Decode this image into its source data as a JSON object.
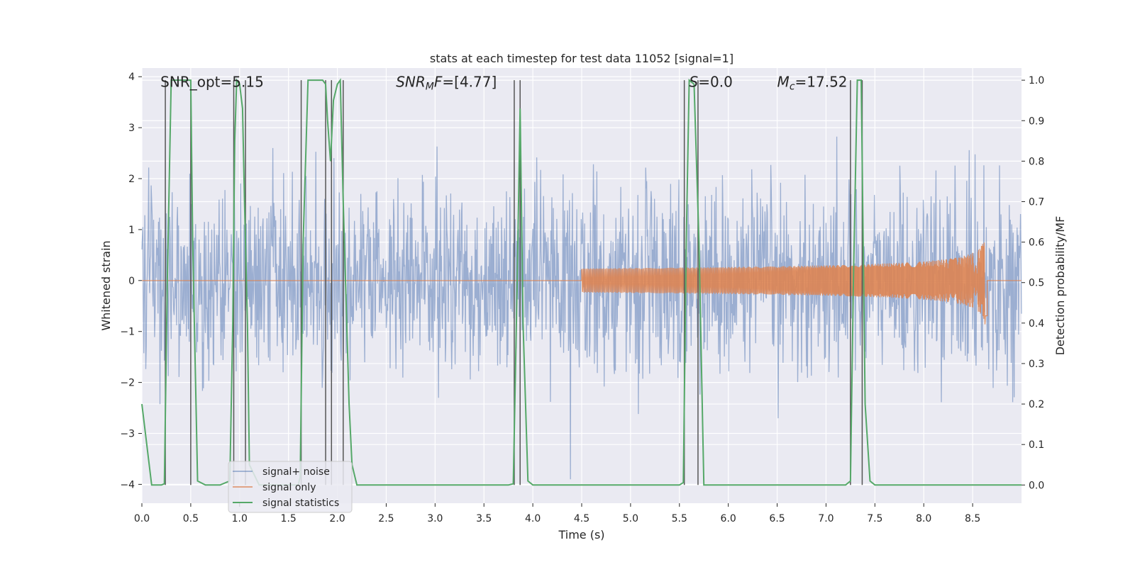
{
  "chart_data": {
    "type": "line",
    "title": "stats at each timestep for test data 11052 [signal=1]",
    "xlabel": "Time (s)",
    "ylabel_left": "Whitened strain",
    "ylabel_right": "Detection probability/MF",
    "xlim": [
      0.0,
      9.0
    ],
    "ylim_left": [
      -4.37,
      4.17
    ],
    "ylim_right": [
      -0.045,
      1.03
    ],
    "x_ticks": [
      0.0,
      0.5,
      1.0,
      1.5,
      2.0,
      2.5,
      3.0,
      3.5,
      4.0,
      4.5,
      5.0,
      5.5,
      6.0,
      6.5,
      7.0,
      7.5,
      8.0,
      8.5
    ],
    "x_tick_labels": [
      "0.0",
      "0.5",
      "1.0",
      "1.5",
      "2.0",
      "2.5",
      "3.0",
      "3.5",
      "4.0",
      "4.5",
      "5.0",
      "5.5",
      "6.0",
      "6.5",
      "7.0",
      "7.5",
      "8.0",
      "8.5"
    ],
    "y_left_ticks": [
      -4,
      -3,
      -2,
      -1,
      0,
      1,
      2,
      3,
      4
    ],
    "y_left_tick_labels": [
      "−4",
      "−3",
      "−2",
      "−1",
      "0",
      "1",
      "2",
      "3",
      "4"
    ],
    "y_right_ticks": [
      0.0,
      0.1,
      0.2,
      0.3,
      0.4,
      0.5,
      0.6,
      0.7,
      0.8,
      0.9,
      1.0
    ],
    "y_right_tick_labels": [
      "0.0",
      "0.1",
      "0.2",
      "0.3",
      "0.4",
      "0.5",
      "0.6",
      "0.7",
      "0.8",
      "0.9",
      "1.0"
    ],
    "grid": true,
    "legend_position": "lower-left",
    "annotations": [
      {
        "text": "SNR_opt=5.15",
        "x": 0.19,
        "y": 3.8
      },
      {
        "text": "SNR_MF=[4.77]",
        "x": 2.6,
        "y": 3.8
      },
      {
        "text": "S=0.0",
        "x": 5.6,
        "y": 3.8
      },
      {
        "text": "M_c=17.52",
        "x": 6.5,
        "y": 3.8
      }
    ],
    "series": [
      {
        "name": "signal+ noise",
        "color": "#4c72b0",
        "kind": "noise",
        "sample_dt": 0.005,
        "std": 0.9,
        "x_end": 9.0
      },
      {
        "name": "signal only",
        "color": "#dd8452",
        "kind": "chirp",
        "t_start": 4.5,
        "t_merge": 8.65,
        "amp_peak": 1.0
      },
      {
        "name": "signal statistics",
        "color": "#55a868",
        "axis": "right",
        "x": [
          0.0,
          0.05,
          0.1,
          0.2,
          0.23,
          0.26,
          0.3,
          0.33,
          0.4,
          0.45,
          0.5,
          0.52,
          0.57,
          0.65,
          0.7,
          0.8,
          0.9,
          0.93,
          0.95,
          0.97,
          1.0,
          1.03,
          1.05,
          1.08,
          1.1,
          1.2,
          1.3,
          1.4,
          1.5,
          1.6,
          1.62,
          1.65,
          1.7,
          1.75,
          1.8,
          1.85,
          1.88,
          1.9,
          1.93,
          1.96,
          2.0,
          2.03,
          2.06,
          2.09,
          2.12,
          2.15,
          2.2,
          2.3,
          2.5,
          3.0,
          3.5,
          3.75,
          3.8,
          3.84,
          3.87,
          3.9,
          3.95,
          4.0,
          4.5,
          5.0,
          5.5,
          5.54,
          5.57,
          5.6,
          5.65,
          5.7,
          5.75,
          6.0,
          6.5,
          7.0,
          7.2,
          7.25,
          7.28,
          7.32,
          7.36,
          7.4,
          7.45,
          7.5,
          8.0,
          8.5,
          9.0
        ],
        "y": [
          0.2,
          0.1,
          0.0,
          0.0,
          0.003,
          0.5,
          1.0,
          1.0,
          1.0,
          1.0,
          1.0,
          0.6,
          0.01,
          0.0,
          0.0,
          0.0,
          0.01,
          0.4,
          0.85,
          1.0,
          0.99,
          0.93,
          0.7,
          0.4,
          0.05,
          0.0,
          0.0,
          0.0,
          0.0,
          0.0,
          0.02,
          0.6,
          1.0,
          1.0,
          1.0,
          1.0,
          0.99,
          0.9,
          0.8,
          0.95,
          0.99,
          1.0,
          0.7,
          0.45,
          0.2,
          0.05,
          0.0,
          0.0,
          0.0,
          0.0,
          0.0,
          0.0,
          0.003,
          0.5,
          0.93,
          0.4,
          0.01,
          0.0,
          0.0,
          0.0,
          0.0,
          0.006,
          0.6,
          1.0,
          0.99,
          0.6,
          0.0,
          0.0,
          0.0,
          0.0,
          0.0,
          0.01,
          0.5,
          1.0,
          1.0,
          0.2,
          0.01,
          0.0,
          0.0,
          0.0,
          0.0
        ]
      }
    ],
    "vertical_lines": [
      0.24,
      0.5,
      0.94,
      1.06,
      1.63,
      1.88,
      1.94,
      2.06,
      3.81,
      3.87,
      5.55,
      5.69,
      7.25,
      7.37
    ]
  }
}
